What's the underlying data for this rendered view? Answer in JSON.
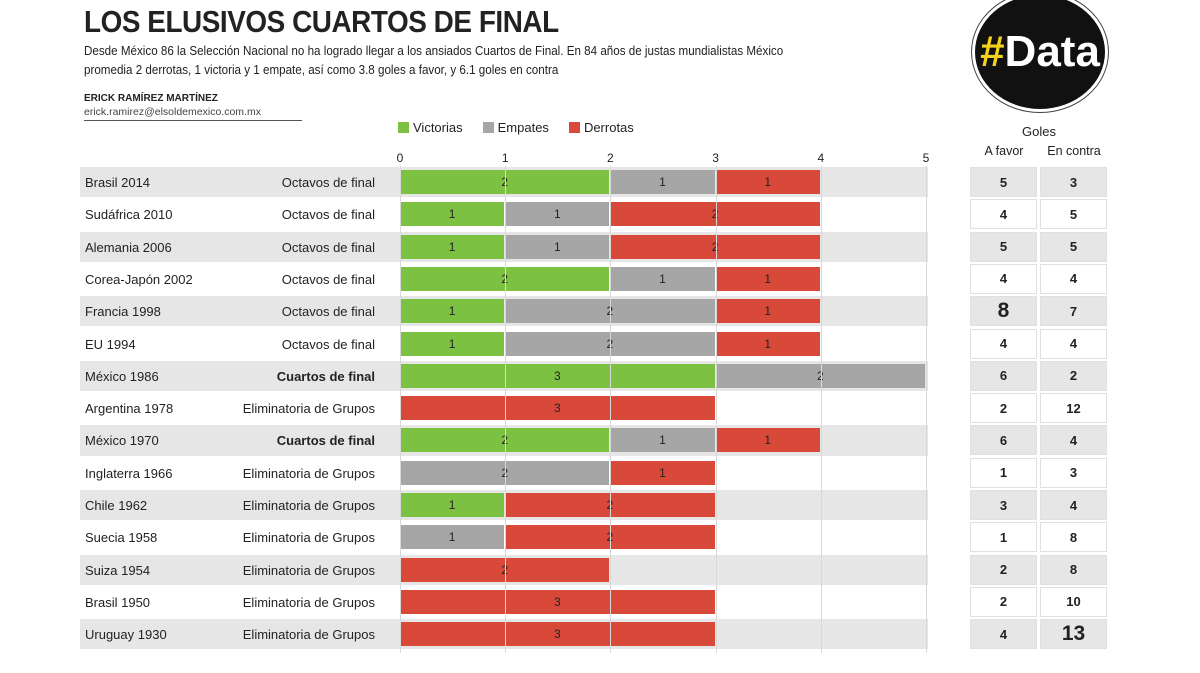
{
  "header": {
    "title": "LOS ELUSIVOS CUARTOS DE FINAL",
    "subtitle": "Desde México 86 la Selección Nacional no ha logrado llegar a los ansiados Cuartos de Final. En  84 años de justas mundialistas México promedia 2 derrotas, 1 victoria y 1 empate, así como 3.8 goles a favor, y 6.1 goles en contra",
    "author": "ERICK RAMÍREZ MARTÍNEZ",
    "email": "erick.ramirez@elsoldemexico.com.mx",
    "logo": "#Data"
  },
  "chart_data": {
    "type": "bar",
    "stacked": true,
    "orientation": "horizontal",
    "legend": [
      "Victorias",
      "Empates",
      "Derrotas"
    ],
    "colors": {
      "Victorias": "#7dc142",
      "Empates": "#a6a6a6",
      "Derrotas": "#d9493a"
    },
    "xlim": [
      0,
      5
    ],
    "xticks": [
      "0",
      "1",
      "2",
      "3",
      "4",
      "5"
    ],
    "categories": [
      "Brasil 2014",
      "Sudáfrica 2010",
      "Alemania 2006",
      "Corea-Japón 2002",
      "Francia 1998",
      "EU 1994",
      "México 1986",
      "Argentina 1978",
      "México 1970",
      "Inglaterra 1966",
      "Chile 1962",
      "Suecia 1958",
      "Suiza 1954",
      "Brasil 1950",
      "Uruguay 1930"
    ],
    "phases": [
      "Octavos de final",
      "Octavos de final",
      "Octavos de final",
      "Octavos de final",
      "Octavos de final",
      "Octavos de final",
      "Cuartos de final",
      "Eliminatoria de Grupos",
      "Cuartos de final",
      "Eliminatoria de Grupos",
      "Eliminatoria de Grupos",
      "Eliminatoria de Grupos",
      "Eliminatoria de Grupos",
      "Eliminatoria de Grupos",
      "Eliminatoria de Grupos"
    ],
    "series": [
      {
        "name": "Victorias",
        "values": [
          2,
          1,
          1,
          2,
          1,
          1,
          3,
          0,
          2,
          0,
          1,
          0,
          0,
          0,
          0
        ]
      },
      {
        "name": "Empates",
        "values": [
          1,
          1,
          1,
          1,
          2,
          2,
          2,
          0,
          1,
          2,
          0,
          1,
          0,
          0,
          0
        ]
      },
      {
        "name": "Derrotas",
        "values": [
          1,
          2,
          2,
          1,
          1,
          1,
          0,
          3,
          1,
          1,
          2,
          2,
          2,
          3,
          3
        ]
      }
    ],
    "goles": {
      "title": "Goles",
      "columns": [
        "A favor",
        "En contra"
      ],
      "a_favor": [
        5,
        4,
        5,
        4,
        8,
        4,
        6,
        2,
        6,
        1,
        3,
        1,
        2,
        2,
        4
      ],
      "en_contra": [
        3,
        5,
        5,
        4,
        7,
        4,
        2,
        12,
        4,
        3,
        4,
        8,
        8,
        10,
        13
      ]
    }
  }
}
